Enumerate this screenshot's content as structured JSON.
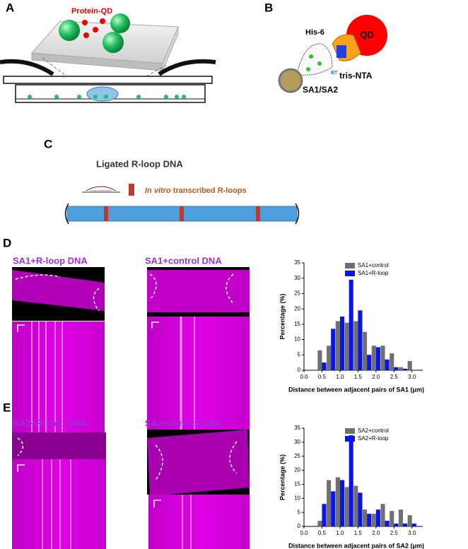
{
  "panels": {
    "A": {
      "label": "A",
      "protein_qd": "Protein-QD"
    },
    "B": {
      "label": "B",
      "his6": "His-6",
      "qd": "QD",
      "bt": "BT",
      "tris_nta": "tris-NTA",
      "sa": "SA1/SA2"
    },
    "C": {
      "label": "C",
      "title": "Ligated R-loop DNA",
      "in_vitro": "In vitro",
      "transcribed": "transcribed R-loops"
    },
    "D": {
      "label": "D",
      "left_title": "SA1+R-loop DNA",
      "right_title": "SA1+control DNA"
    },
    "E": {
      "label": "E",
      "left_title": "SA2+R-loop DNA",
      "right_title": "SA2+control DNA"
    }
  },
  "chart_data": [
    {
      "type": "bar",
      "xlabel": "Distance between adjacent pairs of SA1 (μm)",
      "ylabel": "Percentage (%)",
      "x": [
        0.5,
        0.75,
        1.0,
        1.25,
        1.5,
        1.75,
        2.0,
        2.25,
        2.5,
        2.75,
        3.0
      ],
      "series": [
        {
          "name": "SA1+control",
          "color": "#707070",
          "values": [
            6.5,
            8,
            16,
            15.5,
            16,
            12.5,
            8,
            8,
            5.5,
            1,
            3
          ]
        },
        {
          "name": "SA1+R-loop",
          "color": "#0a14e6",
          "values": [
            2.5,
            13.5,
            17.5,
            29.5,
            19.5,
            5,
            7.5,
            3.5,
            1,
            0.5,
            0
          ]
        }
      ],
      "xlim": [
        0,
        3.3
      ],
      "xticks": [
        {
          "value": 0,
          "label": "0.0"
        },
        0.5,
        {
          "value": 1,
          "label": "1.0"
        },
        1.5,
        {
          "value": 2,
          "label": "2.0"
        },
        2.5,
        {
          "value": 3,
          "label": "3.0"
        }
      ],
      "ylim": [
        0,
        35
      ],
      "yticks": [
        0,
        5,
        10,
        15,
        20,
        25,
        30,
        35
      ],
      "grid": false,
      "legend": "upper right"
    },
    {
      "type": "bar",
      "xlabel": "Distance between adjacent pairs of SA2 (μm)",
      "ylabel": "Percentage (%)",
      "x": [
        0.5,
        0.75,
        1.0,
        1.25,
        1.5,
        1.75,
        2.0,
        2.25,
        2.5,
        2.75,
        3.0
      ],
      "series": [
        {
          "name": "SA2+control",
          "color": "#707070",
          "values": [
            2,
            16.5,
            17.5,
            14,
            14.5,
            6,
            4.5,
            8,
            5.5,
            6,
            4
          ]
        },
        {
          "name": "SA2+R-loop",
          "color": "#0a14e6",
          "values": [
            8,
            12.5,
            16.5,
            32.5,
            12,
            4.5,
            6,
            2,
            1,
            1,
            1
          ]
        }
      ],
      "xlim": [
        0,
        3.3
      ],
      "xticks": [
        {
          "value": 0,
          "label": "0.0"
        },
        0.5,
        {
          "value": 1,
          "label": "1.0"
        },
        1.5,
        {
          "value": 2,
          "label": "2.0"
        },
        2.5,
        {
          "value": 3,
          "label": "3.0"
        }
      ],
      "ylim": [
        0,
        35
      ],
      "yticks": [
        0,
        5,
        10,
        15,
        20,
        25,
        30,
        35
      ],
      "grid": false,
      "legend": "upper right"
    }
  ]
}
